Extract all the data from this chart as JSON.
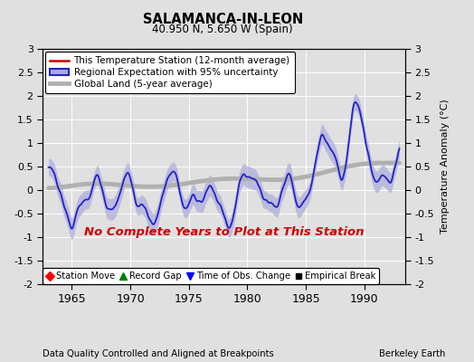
{
  "title": "SALAMANCA-IN-LEON",
  "subtitle": "40.950 N, 5.650 W (Spain)",
  "xlabel_bottom": "Data Quality Controlled and Aligned at Breakpoints",
  "xlabel_right": "Berkeley Earth",
  "ylabel": "Temperature Anomaly (°C)",
  "xmin": 1962.5,
  "xmax": 1993.5,
  "ymin": -2,
  "ymax": 3,
  "yticks": [
    -2,
    -1.5,
    -1,
    -0.5,
    0,
    0.5,
    1,
    1.5,
    2,
    2.5,
    3
  ],
  "xticks": [
    1965,
    1970,
    1975,
    1980,
    1985,
    1990
  ],
  "no_data_text": "No Complete Years to Plot at This Station",
  "no_data_color": "#cc0000",
  "bg_color": "#e0e0e0",
  "plot_bg_color": "#e0e0e0",
  "station_color": "#cc0000",
  "regional_color": "#2222cc",
  "regional_fill_color": "#aaaadd",
  "global_color": "#b0b0b0",
  "legend_top": [
    {
      "label": "This Temperature Station (12-month average)",
      "color": "#cc0000",
      "lw": 1.5
    },
    {
      "label": "Regional Expectation with 95% uncertainty",
      "color": "#2222cc",
      "fill": "#aaaadd"
    },
    {
      "label": "Global Land (5-year average)",
      "color": "#b0b0b0",
      "lw": 4
    }
  ],
  "legend_bottom": [
    {
      "label": "Station Move",
      "marker": "D",
      "color": "red"
    },
    {
      "label": "Record Gap",
      "marker": "^",
      "color": "green"
    },
    {
      "label": "Time of Obs. Change",
      "marker": "v",
      "color": "blue"
    },
    {
      "label": "Empirical Break",
      "marker": "s",
      "color": "black"
    }
  ]
}
